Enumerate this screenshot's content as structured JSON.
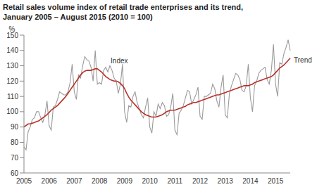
{
  "chart_data": {
    "type": "line",
    "title": "Retail sales volume index of retail trade enterprises and its trend,",
    "subtitle": "January 2005 – August 2015 (2010 = 100)",
    "y_label": "%",
    "categories": [
      "2005",
      null,
      null,
      null,
      null,
      null,
      null,
      null,
      null,
      null,
      null,
      null,
      "2006",
      null,
      null,
      null,
      null,
      null,
      null,
      null,
      null,
      null,
      null,
      null,
      "2007",
      null,
      null,
      null,
      null,
      null,
      null,
      null,
      null,
      null,
      null,
      null,
      "2008",
      null,
      null,
      null,
      null,
      null,
      null,
      null,
      null,
      null,
      null,
      null,
      "2009",
      null,
      null,
      null,
      null,
      null,
      null,
      null,
      null,
      null,
      null,
      null,
      "2010",
      null,
      null,
      null,
      null,
      null,
      null,
      null,
      null,
      null,
      null,
      null,
      "2011",
      null,
      null,
      null,
      null,
      null,
      null,
      null,
      null,
      null,
      null,
      null,
      "2012",
      null,
      null,
      null,
      null,
      null,
      null,
      null,
      null,
      null,
      null,
      null,
      "2013",
      null,
      null,
      null,
      null,
      null,
      null,
      null,
      null,
      null,
      null,
      null,
      "2014",
      null,
      null,
      null,
      null,
      null,
      null,
      null,
      null,
      null,
      null,
      null,
      "2015",
      null,
      null,
      null,
      null,
      null,
      null,
      null
    ],
    "series": [
      {
        "name": "Index",
        "color": "#9a9a9a",
        "values": [
          77,
          75,
          87,
          90,
          95,
          96,
          100,
          100,
          96,
          93,
          98,
          107,
          91,
          88,
          103,
          104,
          108,
          113,
          112,
          111,
          111,
          113,
          119,
          131,
          113,
          108,
          124,
          122,
          130,
          136,
          134,
          133,
          129,
          120,
          140,
          118,
          119,
          118,
          127,
          129,
          126,
          130,
          127,
          122,
          120,
          112,
          118,
          131,
          100,
          93,
          104,
          103,
          110,
          113,
          106,
          102,
          98,
          96,
          103,
          109,
          90,
          86,
          100,
          97,
          105,
          102,
          106,
          104,
          97,
          98,
          103,
          112,
          88,
          85,
          99,
          101,
          104,
          109,
          114,
          113,
          105,
          108,
          111,
          116,
          97,
          95,
          110,
          110,
          111,
          112,
          118,
          115,
          107,
          103,
          116,
          124,
          98,
          96,
          112,
          117,
          121,
          125,
          124,
          121,
          114,
          113,
          117,
          131,
          109,
          100,
          117,
          120,
          125,
          127,
          128,
          129,
          121,
          118,
          127,
          144,
          118,
          110,
          132,
          131,
          138,
          142,
          147,
          140
        ]
      },
      {
        "name": "Trend",
        "color": "#b8312a",
        "values": [
          90,
          91,
          92,
          92,
          92.5,
          93,
          93.5,
          94,
          95,
          96,
          97,
          98,
          99.5,
          101,
          102,
          103,
          104,
          105.5,
          107,
          108.5,
          110,
          112,
          114,
          116,
          118,
          120,
          122,
          124,
          125.5,
          126.5,
          127,
          127,
          127,
          127.5,
          128,
          128,
          127,
          126,
          124.5,
          123,
          122,
          121,
          120.5,
          120,
          120,
          119.5,
          118.5,
          117,
          115,
          112,
          109.5,
          107.5,
          106,
          104.5,
          103,
          101.5,
          100,
          99,
          98,
          97.5,
          97,
          96.5,
          96.5,
          96.5,
          97,
          97.5,
          98,
          99,
          100,
          100.5,
          101,
          101,
          101,
          101.5,
          102,
          102.5,
          103,
          103.5,
          104.5,
          105,
          105.5,
          106,
          106,
          106.5,
          107,
          107.5,
          108,
          108.5,
          109,
          109.5,
          110,
          110.5,
          111,
          111,
          111.5,
          112,
          112.5,
          113,
          113.5,
          114,
          114.5,
          115,
          115.5,
          116,
          116.5,
          117,
          117,
          117,
          117.5,
          118,
          119,
          119.5,
          120,
          120.5,
          121,
          121.5,
          122,
          122.5,
          123,
          124,
          125.5,
          127,
          128.5,
          129.5,
          130.5,
          132,
          133.5,
          135
        ]
      }
    ],
    "ylim": [
      60,
      150
    ],
    "yticks": [
      60,
      70,
      80,
      90,
      100,
      110,
      120,
      130,
      140,
      150
    ],
    "grid": false
  }
}
